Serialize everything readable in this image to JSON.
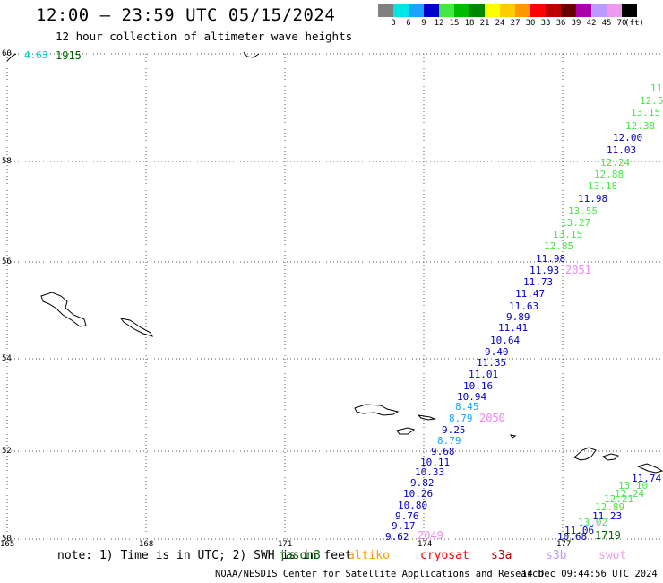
{
  "header": {
    "title": "12:00 – 23:59 UTC 05/15/2024",
    "subtitle": "12 hour collection of altimeter wave heights"
  },
  "legend": {
    "labels": [
      "3",
      "6",
      "9",
      "12",
      "15",
      "18",
      "21",
      "24",
      "27",
      "30",
      "33",
      "36",
      "39",
      "42",
      "45",
      "70",
      "(ft)"
    ],
    "colors": [
      "#808080",
      "#00e5e5",
      "#1aa3ff",
      "#0000cc",
      "#44e844",
      "#00bb00",
      "#008800",
      "#ffff00",
      "#ffcc00",
      "#ff9900",
      "#ff0000",
      "#bb0000",
      "#660000",
      "#aa00aa",
      "#bb99ff",
      "#ee99ee",
      "#000000"
    ]
  },
  "axes": {
    "lat_labels": [
      "60",
      "58",
      "56",
      "54",
      "52",
      "50"
    ],
    "lon_labels": [
      "165",
      "168",
      "171",
      "174",
      "177"
    ]
  },
  "track_labels": [
    {
      "text": "4.63",
      "color": "#00cccc"
    },
    {
      "text": "1915",
      "color": "#006600"
    },
    {
      "text": "2051",
      "color": "#ee88ee"
    },
    {
      "text": "2050",
      "color": "#ee88ee"
    },
    {
      "text": "2049",
      "color": "#ee88ee"
    },
    {
      "text": "1719",
      "color": "#006600"
    }
  ],
  "track_main": [
    {
      "text": "11.",
      "color": "#44e844"
    },
    {
      "text": "12.5",
      "color": "#44e844"
    },
    {
      "text": "13.15",
      "color": "#44e844"
    },
    {
      "text": "12.38",
      "color": "#44e844"
    },
    {
      "text": "12.00",
      "color": "#0000cc"
    },
    {
      "text": "11.03",
      "color": "#0000cc"
    },
    {
      "text": "12.24",
      "color": "#44e844"
    },
    {
      "text": "12.88",
      "color": "#44e844"
    },
    {
      "text": "13.18",
      "color": "#44e844"
    },
    {
      "text": "11.98",
      "color": "#0000cc"
    },
    {
      "text": "13.55",
      "color": "#44e844"
    },
    {
      "text": "13.27",
      "color": "#44e844"
    },
    {
      "text": "13.15",
      "color": "#44e844"
    },
    {
      "text": "12.85",
      "color": "#44e844"
    },
    {
      "text": "11.98",
      "color": "#0000cc"
    },
    {
      "text": "11.93",
      "color": "#0000cc"
    },
    {
      "text": "11.73",
      "color": "#0000cc"
    },
    {
      "text": "11.47",
      "color": "#0000cc"
    },
    {
      "text": "11.63",
      "color": "#0000cc"
    },
    {
      "text": "9.89",
      "color": "#0000cc"
    },
    {
      "text": "11.41",
      "color": "#0000cc"
    },
    {
      "text": "10.64",
      "color": "#0000cc"
    },
    {
      "text": "9.40",
      "color": "#0000cc"
    },
    {
      "text": "11.35",
      "color": "#0000cc"
    },
    {
      "text": "11.01",
      "color": "#0000cc"
    },
    {
      "text": "10.16",
      "color": "#0000cc"
    },
    {
      "text": "10.94",
      "color": "#0000cc"
    },
    {
      "text": "8.45",
      "color": "#1aa3ff"
    },
    {
      "text": "8.79",
      "color": "#1aa3ff"
    },
    {
      "text": "9.25",
      "color": "#0000cc"
    },
    {
      "text": "8.79",
      "color": "#1aa3ff"
    },
    {
      "text": "9.68",
      "color": "#0000cc"
    },
    {
      "text": "10.11",
      "color": "#0000cc"
    },
    {
      "text": "10.33",
      "color": "#0000cc"
    },
    {
      "text": "9.82",
      "color": "#0000cc"
    },
    {
      "text": "10.26",
      "color": "#0000cc"
    },
    {
      "text": "10.80",
      "color": "#0000cc"
    },
    {
      "text": "9.76",
      "color": "#0000cc"
    },
    {
      "text": "9.17",
      "color": "#0000cc"
    },
    {
      "text": "9.62",
      "color": "#0000cc"
    }
  ],
  "track_east": [
    {
      "text": "11.74",
      "color": "#0000cc"
    },
    {
      "text": "13.10",
      "color": "#44e844"
    },
    {
      "text": "12.24",
      "color": "#44e844"
    },
    {
      "text": "12.21",
      "color": "#44e844"
    },
    {
      "text": "12.89",
      "color": "#44e844"
    },
    {
      "text": "11.23",
      "color": "#0000cc"
    },
    {
      "text": "13.02",
      "color": "#44e844"
    },
    {
      "text": "11.06",
      "color": "#0000cc"
    },
    {
      "text": "10.68",
      "color": "#0000cc"
    }
  ],
  "note": {
    "text": "note: 1) Time is in UTC; 2) SWH is in feet",
    "satellites": [
      {
        "name": "jason3",
        "color": "#006600"
      },
      {
        "name": "altiko",
        "color": "#ff9900"
      },
      {
        "name": "cryosat",
        "color": "#ff0000"
      },
      {
        "name": "s3a",
        "color": "#bb0000"
      },
      {
        "name": "s3b",
        "color": "#bb99ff"
      },
      {
        "name": "swot",
        "color": "#ee99ee"
      }
    ]
  },
  "footer": {
    "credit": "NOAA/NESDIS Center for Satellite Applications and Research",
    "timestamp": "14 Dec 09:44:56 UTC 2024"
  }
}
